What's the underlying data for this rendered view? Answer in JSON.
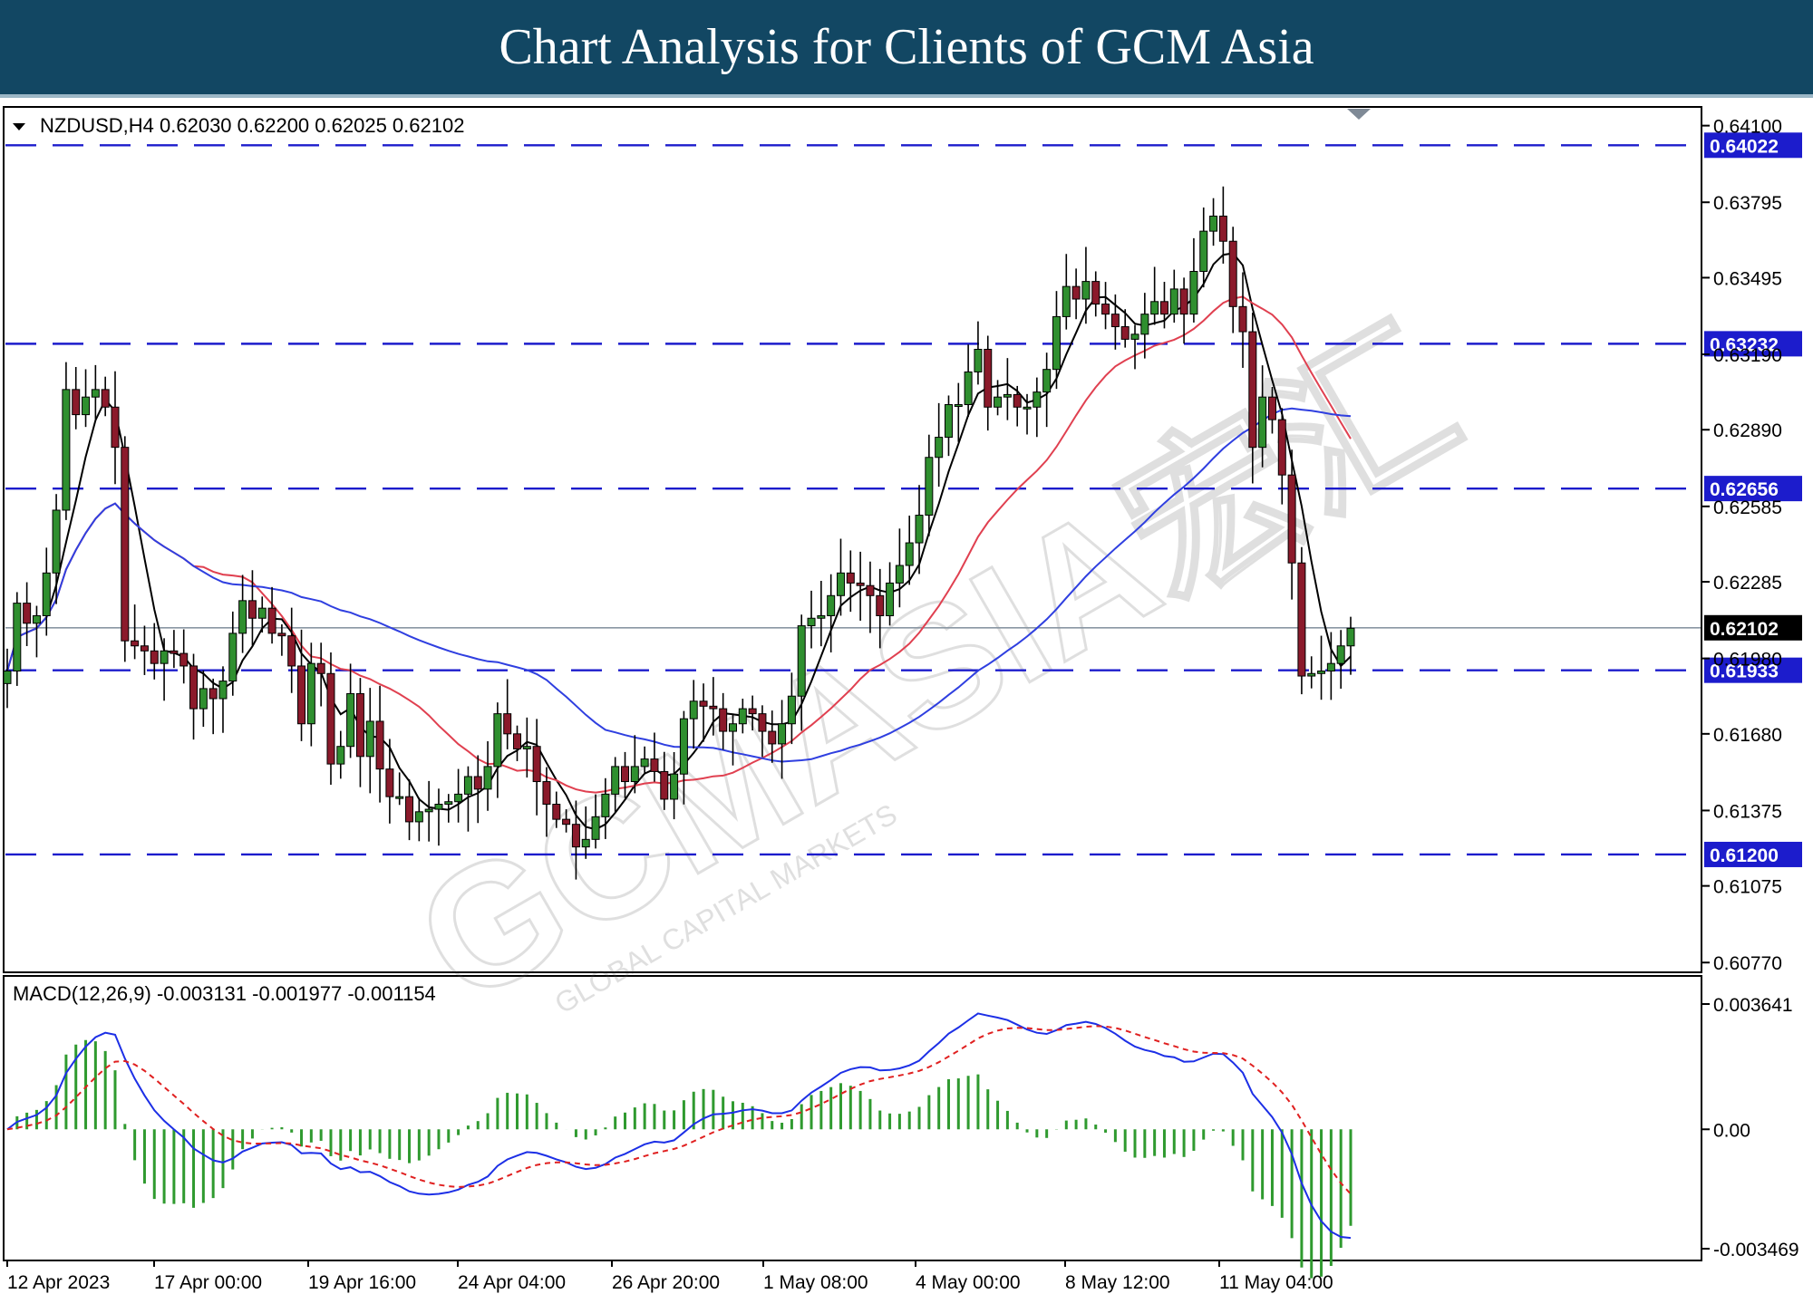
{
  "header": {
    "title": "Chart Analysis for Clients of GCM Asia"
  },
  "watermark": {
    "text": "GCMASIA宏汇",
    "subtext": "GLOBAL CAPITAL MARKETS"
  },
  "chart_data": {
    "type": "candlestick",
    "instrument_label": "NZDUSD,H4  0.62030 0.62200 0.62025 0.62102",
    "ylim": [
      0.6076,
      0.6416
    ],
    "y_ticks": [
      "0.64100",
      "0.63795",
      "0.63495",
      "0.63190",
      "0.62890",
      "0.62585",
      "0.62285",
      "0.61980",
      "0.61680",
      "0.61375",
      "0.61075",
      "0.60770"
    ],
    "x_ticks": [
      "12 Apr 2023",
      "17 Apr 00:00",
      "19 Apr 16:00",
      "24 Apr 04:00",
      "26 Apr 20:00",
      "1 May 08:00",
      "4 May 00:00",
      "8 May 12:00",
      "11 May 04:00"
    ],
    "levels": [
      {
        "value": 0.64022,
        "label": "0.64022"
      },
      {
        "value": 0.63232,
        "label": "0.63232"
      },
      {
        "value": 0.62656,
        "label": "0.62656"
      },
      {
        "value": 0.61933,
        "label": "0.61933"
      },
      {
        "value": 0.612,
        "label": "0.61200"
      }
    ],
    "current_price": {
      "value": 0.62102,
      "label": "0.62102"
    },
    "colors": {
      "up": "#2f8f2f",
      "down": "#8b1a2b",
      "level": "#1c1ccc",
      "ma_fast": "#000000",
      "ma_mid": "#e04050",
      "ma_slow": "#2f3fe0",
      "macd": "#1c2fe6",
      "signal": "#e02020",
      "hist": "#2f9a2f"
    },
    "series": [
      {
        "name": "close",
        "values": [
          0.6193,
          0.622,
          0.6212,
          0.6215,
          0.6232,
          0.6257,
          0.6305,
          0.6295,
          0.6302,
          0.6305,
          0.6298,
          0.6282,
          0.6205,
          0.6203,
          0.6201,
          0.6196,
          0.6201,
          0.62,
          0.6195,
          0.6178,
          0.6186,
          0.6182,
          0.6189,
          0.6208,
          0.6221,
          0.6214,
          0.6218,
          0.6208,
          0.6207,
          0.6195,
          0.6172,
          0.6196,
          0.6192,
          0.6156,
          0.6163,
          0.6184,
          0.6159,
          0.6173,
          0.6154,
          0.6143,
          0.6143,
          0.6133,
          0.6137,
          0.6138,
          0.614,
          0.6141,
          0.6144,
          0.6151,
          0.6146,
          0.6155,
          0.6176,
          0.6168,
          0.6162,
          0.6163,
          0.6149,
          0.614,
          0.6134,
          0.6132,
          0.6123,
          0.6126,
          0.6135,
          0.6144,
          0.6155,
          0.6149,
          0.6155,
          0.6158,
          0.6153,
          0.6142,
          0.6152,
          0.6174,
          0.6181,
          0.6179,
          0.6178,
          0.6169,
          0.6172,
          0.6178,
          0.6176,
          0.6169,
          0.6164,
          0.6172,
          0.6183,
          0.6211,
          0.6214,
          0.6215,
          0.6223,
          0.6232,
          0.6228,
          0.6227,
          0.6223,
          0.6215,
          0.6228,
          0.6235,
          0.6244,
          0.6255,
          0.6278,
          0.6286,
          0.6299,
          0.6299,
          0.6312,
          0.6321,
          0.6298,
          0.6302,
          0.6303,
          0.6298,
          0.6298,
          0.6304,
          0.6313,
          0.6334,
          0.6346,
          0.6341,
          0.6348,
          0.6339,
          0.6335,
          0.633,
          0.6325,
          0.6327,
          0.6335,
          0.634,
          0.6335,
          0.6345,
          0.6335,
          0.6352,
          0.6368,
          0.6374,
          0.6364,
          0.6338,
          0.6328,
          0.6282,
          0.6302,
          0.6293,
          0.6271,
          0.6236,
          0.6191,
          0.6192,
          0.6193,
          0.6196,
          0.6203,
          0.621
        ]
      },
      {
        "name": "MACD(12,26,9) -0.003131 -0.001977 -0.001154",
        "values": []
      }
    ],
    "macd_ticks": [
      "0.003641",
      "0.00",
      "-0.003469"
    ]
  }
}
